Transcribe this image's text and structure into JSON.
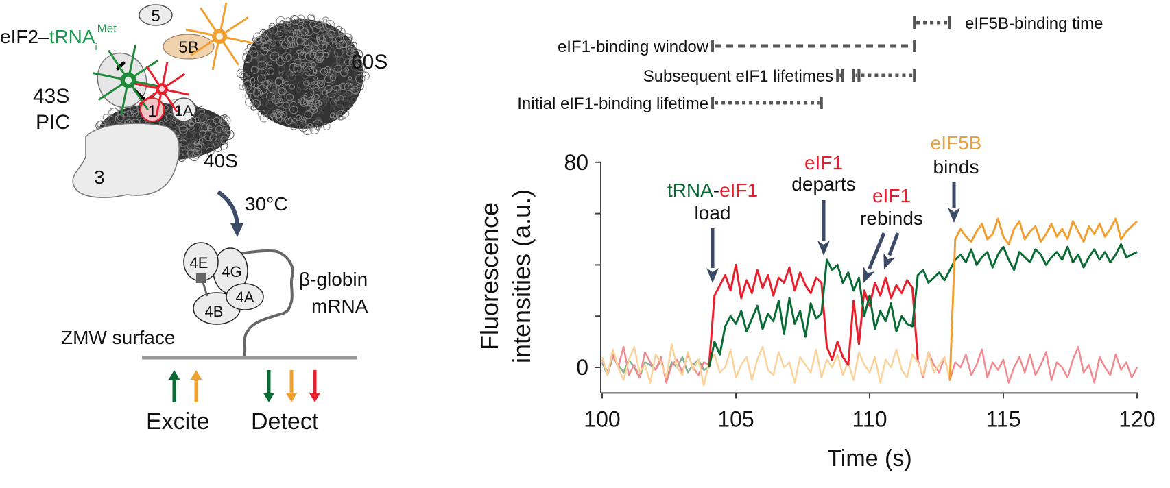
{
  "schematic": {
    "complex_label": {
      "prefix": "eIF2–",
      "trna": "tRNA",
      "sub": "i",
      "sup": "Met"
    },
    "factor_5": "5",
    "factor_5b": "5B",
    "factor_1": "1",
    "factor_1a": "1A",
    "factor_3": "3",
    "label_43s": "43S",
    "label_pic": "PIC",
    "label_40s": "40S",
    "label_60s": "60S",
    "temperature": "30°C",
    "factor_4e": "4E",
    "factor_4g": "4G",
    "factor_4a": "4A",
    "factor_4b": "4B",
    "mrna_line1": "β-globin",
    "mrna_line2": "mRNA",
    "surface_label": "ZMW surface",
    "excite_label": "Excite",
    "detect_label": "Detect",
    "colors": {
      "green": "#0b6b35",
      "orange": "#f0a030",
      "red": "#e8202e",
      "gray": "#999999",
      "navy": "#3b4a66"
    }
  },
  "timeline": {
    "rows": [
      {
        "label": "eIF5B-binding time",
        "segments": [
          [
            111.67,
            113.0
          ]
        ]
      },
      {
        "label": "eIF1-binding window",
        "segments": [
          [
            104.13,
            111.67
          ]
        ]
      },
      {
        "label": "Subsequent eIF1 lifetimes",
        "segments": [
          [
            108.8,
            109.0
          ],
          [
            109.4,
            109.6
          ],
          [
            109.6,
            111.67
          ]
        ]
      },
      {
        "label": "Initial eIF1-binding lifetime",
        "segments": [
          [
            104.13,
            108.2
          ]
        ]
      }
    ]
  },
  "annotations": {
    "load": {
      "trna": "tRNA",
      "dash": "-",
      "eif1": "eIF1",
      "verb": "load"
    },
    "departs": {
      "factor": "eIF1",
      "verb": "departs"
    },
    "rebinds": {
      "factor": "eIF1",
      "verb": "rebinds"
    },
    "binds": {
      "factor": "eIF5B",
      "verb": "binds"
    }
  },
  "chart_data": {
    "type": "line",
    "xlabel": "Time (s)",
    "ylabel": [
      "Fluorescence",
      "intensities (a.u.)"
    ],
    "xlim": [
      100,
      120
    ],
    "ylim": [
      -10,
      80
    ],
    "xticks": [
      100,
      105,
      110,
      115,
      120
    ],
    "yticks": [
      0,
      20,
      40,
      60,
      80
    ],
    "ytick_labels": [
      "0",
      "",
      "",
      "",
      "80"
    ],
    "grid": false,
    "series": [
      {
        "channel": "tRNA",
        "color": "#0b6b35",
        "faded_color": "#7fae92",
        "active_range": [
          104.2,
          120
        ],
        "values": [
          2,
          -3,
          4,
          1,
          -2,
          3,
          0,
          -4,
          2,
          1,
          -1,
          3,
          -5,
          2,
          0,
          4,
          -2,
          1,
          3,
          -1,
          0,
          10,
          5,
          16,
          20,
          17,
          22,
          14,
          19,
          24,
          15,
          21,
          18,
          26,
          13,
          27,
          17,
          22,
          12,
          25,
          19,
          21,
          42,
          38,
          40,
          33,
          37,
          30,
          35,
          20,
          28,
          15,
          22,
          18,
          25,
          14,
          20,
          17,
          16,
          36,
          38,
          33,
          35,
          37,
          34,
          38,
          42,
          44,
          41,
          46,
          40,
          43,
          45,
          39,
          44,
          47,
          42,
          38,
          45,
          43,
          41,
          46,
          44,
          40,
          43,
          45,
          42,
          47,
          41,
          44,
          39,
          43,
          46,
          42,
          45,
          41,
          44,
          48,
          43,
          44,
          45
        ]
      },
      {
        "channel": "eIF1",
        "color": "#e8202e",
        "faded_color": "#f08a90",
        "active_range": [
          104.2,
          111.8
        ],
        "values": [
          3,
          -2,
          5,
          0,
          8,
          -3,
          1,
          -4,
          6,
          2,
          -1,
          4,
          -6,
          1,
          3,
          -2,
          5,
          0,
          -3,
          2,
          1,
          28,
          32,
          36,
          30,
          40,
          27,
          34,
          29,
          38,
          31,
          36,
          28,
          35,
          33,
          39,
          30,
          37,
          32,
          29,
          35,
          33,
          8,
          3,
          10,
          4,
          1,
          26,
          9,
          30,
          24,
          33,
          28,
          35,
          27,
          32,
          29,
          34,
          31,
          3,
          -4,
          6,
          1,
          -2,
          4,
          -5,
          2,
          0,
          5,
          -3,
          1,
          7,
          -4,
          2,
          -1,
          3,
          -6,
          0,
          4,
          -2,
          5,
          -3,
          1,
          6,
          -5,
          2,
          0,
          -4,
          3,
          8,
          -2,
          1,
          -6,
          4,
          0,
          -3,
          5,
          -1,
          2,
          -4,
          0
        ]
      },
      {
        "channel": "eIF5B",
        "color": "#f0a030",
        "faded_color": "#fbd39a",
        "active_range": [
          113.2,
          120
        ],
        "values": [
          4,
          -3,
          7,
          0,
          -5,
          3,
          8,
          -2,
          1,
          -6,
          5,
          2,
          -4,
          9,
          0,
          -3,
          6,
          -1,
          3,
          -7,
          2,
          5,
          -2,
          0,
          7,
          -4,
          1,
          4,
          -5,
          3,
          8,
          -1,
          -3,
          6,
          0,
          2,
          -6,
          4,
          1,
          -2,
          7,
          -4,
          3,
          0,
          5,
          -3,
          2,
          -5,
          6,
          1,
          -2,
          4,
          -6,
          3,
          0,
          7,
          -1,
          -4,
          5,
          2,
          -3,
          6,
          -2,
          1,
          4,
          -5,
          50,
          54,
          51,
          49,
          53,
          56,
          50,
          52,
          58,
          51,
          48,
          54,
          57,
          50,
          53,
          55,
          49,
          52,
          56,
          51,
          54,
          50,
          57,
          53,
          49,
          55,
          52,
          56,
          51,
          54,
          58,
          50,
          53,
          55,
          57
        ]
      }
    ]
  }
}
